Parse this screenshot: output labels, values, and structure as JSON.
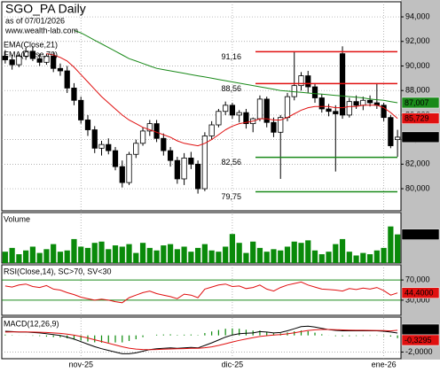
{
  "chart_data": [
    {
      "type": "candlestick",
      "title": "SGO_PA Daily",
      "subtitle": "as of 07/01/2026",
      "source": "www.wealth-lab.com",
      "categories": [
        null,
        null,
        null,
        null,
        null,
        null,
        null,
        null,
        null,
        null,
        null,
        "nov-25",
        null,
        null,
        null,
        null,
        null,
        null,
        null,
        null,
        null,
        null,
        null,
        null,
        null,
        null,
        null,
        null,
        null,
        null,
        null,
        null,
        null,
        "dic-25",
        null,
        null,
        null,
        null,
        null,
        null,
        null,
        null,
        null,
        null,
        null,
        null,
        null,
        null,
        null,
        null,
        null,
        null,
        null,
        null,
        null,
        "ene-26",
        null,
        null
      ],
      "open": [
        90800,
        90500,
        90100,
        90800,
        91200,
        90600,
        90300,
        90800,
        89800,
        89600,
        88200,
        87200,
        85600,
        84800,
        83300,
        83600,
        83100,
        81800,
        80500,
        82800,
        83700,
        84700,
        85300,
        84100,
        83100,
        82300,
        80800,
        82500,
        82000,
        80000,
        84300,
        85200,
        86300,
        86800,
        86000,
        86200,
        85300,
        85700,
        87300,
        85400,
        84600,
        85800,
        87500,
        88400,
        89200,
        88300,
        87400,
        86500,
        86300,
        91000,
        86000,
        87100,
        86800,
        87200,
        87000,
        86800,
        85800,
        84000
      ],
      "high": [
        91300,
        90900,
        91000,
        91500,
        91600,
        91000,
        91000,
        91100,
        90200,
        90000,
        88600,
        87500,
        86000,
        85100,
        83900,
        84100,
        83400,
        82300,
        83000,
        84000,
        85000,
        85600,
        85600,
        84500,
        83400,
        82600,
        82900,
        83000,
        82300,
        84600,
        85500,
        86500,
        87100,
        87000,
        86400,
        86500,
        85800,
        87600,
        87500,
        85800,
        86000,
        87800,
        91200,
        89500,
        89600,
        88600,
        87700,
        86900,
        86800,
        91600,
        87400,
        87600,
        87500,
        87600,
        88600,
        87000,
        86000,
        84800
      ],
      "low": [
        90200,
        89700,
        89900,
        90500,
        90400,
        90000,
        90100,
        89500,
        89200,
        87800,
        86800,
        85300,
        84300,
        82900,
        82700,
        82800,
        81500,
        80100,
        80300,
        82500,
        83500,
        84300,
        83800,
        82700,
        81800,
        80400,
        80300,
        81600,
        79600,
        79800,
        84000,
        85000,
        86000,
        85700,
        85400,
        84900,
        84600,
        85500,
        85000,
        84200,
        80800,
        85500,
        87200,
        88000,
        87800,
        87000,
        86200,
        85900,
        81400,
        85700,
        85800,
        86500,
        86400,
        86700,
        86500,
        85500,
        83300,
        82600
      ],
      "close": [
        90500,
        90100,
        90800,
        91200,
        90600,
        90300,
        90800,
        89800,
        89600,
        88200,
        87200,
        85600,
        84800,
        83300,
        83600,
        83100,
        81800,
        80500,
        82800,
        83700,
        84700,
        85300,
        84100,
        83100,
        82300,
        80800,
        82500,
        82000,
        80000,
        84300,
        85200,
        86300,
        86800,
        86000,
        86200,
        85300,
        85700,
        87300,
        85400,
        84600,
        85800,
        87500,
        88400,
        89200,
        88300,
        87400,
        86500,
        86300,
        86100,
        86000,
        87100,
        86800,
        87200,
        87000,
        86800,
        85800,
        83500,
        84200
      ],
      "close_label": "84,200",
      "ylim": [
        78200,
        95230
      ],
      "yticks": [
        {
          "value": 80000,
          "label": "80,000"
        },
        {
          "value": 82000,
          "label": "82,000"
        },
        {
          "value": 84000,
          "label": "84,000"
        },
        {
          "value": 86000,
          "label": "86,000"
        },
        {
          "value": 88000,
          "label": "88,000"
        },
        {
          "value": 90000,
          "label": "90,000"
        },
        {
          "value": 92000,
          "label": "92,000"
        },
        {
          "value": 94000,
          "label": "94,000"
        }
      ],
      "grid": true,
      "series": [
        {
          "name": "EMA(Close,21)",
          "color": "#e01010",
          "last_label": "85,729",
          "values": [
            null,
            null,
            null,
            null,
            null,
            null,
            91000,
            90900,
            90700,
            90400,
            89900,
            89300,
            88700,
            88100,
            87500,
            87000,
            86500,
            86000,
            85600,
            85300,
            85000,
            84800,
            84600,
            84400,
            84200,
            83900,
            83700,
            83600,
            83500,
            83700,
            84000,
            84400,
            84800,
            85100,
            85300,
            85400,
            85500,
            85700,
            85700,
            85600,
            85600,
            85800,
            86100,
            86400,
            86600,
            86700,
            86700,
            86700,
            86600,
            86600,
            86700,
            86700,
            86800,
            86800,
            86800,
            86600,
            86200,
            85729
          ]
        },
        {
          "name": "EMA(Close,70)",
          "color": "#1a8a1a",
          "last_label": "87,007",
          "values": [
            null,
            null,
            null,
            null,
            null,
            null,
            null,
            null,
            null,
            null,
            92900,
            92700,
            92400,
            92100,
            91800,
            91500,
            91200,
            90900,
            90600,
            90400,
            90200,
            90000,
            89800,
            89700,
            89600,
            89500,
            89400,
            89300,
            89200,
            89100,
            89000,
            88900,
            88800,
            88700,
            88600,
            88500,
            88400,
            88300,
            88200,
            88100,
            88000,
            87950,
            87900,
            87850,
            87800,
            87750,
            87700,
            87650,
            87600,
            87550,
            87500,
            87450,
            87400,
            87300,
            87250,
            87200,
            87100,
            87007
          ]
        }
      ],
      "levels": [
        {
          "value": 91160,
          "label": "91,16",
          "color": "#e01010"
        },
        {
          "value": 88560,
          "label": "88,56",
          "color": "#e01010"
        },
        {
          "value": 82560,
          "label": "82,56",
          "color": "#1a8a1a"
        },
        {
          "value": 79750,
          "label": "79,75",
          "color": "#1a8a1a"
        }
      ]
    },
    {
      "type": "bar",
      "title": "Volume",
      "color": "#0a8a0a",
      "ylim": [
        0,
        4000000
      ],
      "last_label": "2,27 M",
      "values": [
        900000,
        1200000,
        700000,
        1000000,
        1300000,
        800000,
        1100000,
        1500000,
        900000,
        1000000,
        1900000,
        1300000,
        1200000,
        1600000,
        1700000,
        1100000,
        1400000,
        1300000,
        1500000,
        800000,
        1600000,
        1200000,
        1000000,
        1400000,
        1500000,
        1100000,
        1300000,
        900000,
        1200000,
        1500000,
        1000000,
        900000,
        1300000,
        2300000,
        1600000,
        800000,
        1700000,
        1200000,
        900000,
        1100000,
        1000000,
        1300000,
        1700000,
        1600000,
        1800000,
        1000000,
        700000,
        900000,
        1500000,
        1900000,
        900000,
        600000,
        800000,
        700000,
        1000000,
        1200000,
        2900000,
        2270000
      ]
    },
    {
      "type": "line",
      "title": "RSI(Close,14), SC>70, SV<30",
      "color": "#e01010",
      "band_color": "#1a8a1a",
      "last_label": "44,4000",
      "ylim": [
        0,
        100
      ],
      "yticks": [
        {
          "value": 30,
          "label": "30,000"
        },
        {
          "value": 70,
          "label": "70,000"
        }
      ],
      "values": [
        58,
        56,
        60,
        62,
        57,
        55,
        59,
        52,
        50,
        45,
        41,
        36,
        33,
        30,
        32,
        30,
        27,
        25,
        35,
        40,
        45,
        48,
        43,
        40,
        37,
        33,
        42,
        40,
        35,
        52,
        56,
        60,
        62,
        57,
        58,
        53,
        55,
        60,
        52,
        48,
        55,
        60,
        63,
        66,
        60,
        56,
        52,
        51,
        50,
        48,
        53,
        51,
        54,
        52,
        55,
        49,
        40,
        44.4
      ]
    },
    {
      "type": "macd",
      "title": "MACD(12,26,9)",
      "ylim": [
        -2.8,
        2.2
      ],
      "yticks": [
        {
          "value": -2,
          "label": "-2,0000"
        }
      ],
      "macd": {
        "color": "#000000",
        "last_label": "0,2848",
        "values": [
          0.5,
          0.45,
          0.4,
          0.4,
          0.35,
          0.3,
          0.2,
          0.1,
          0,
          -0.2,
          -0.45,
          -0.75,
          -1.05,
          -1.35,
          -1.6,
          -1.8,
          -2.0,
          -2.2,
          -2.2,
          -2.1,
          -1.9,
          -1.7,
          -1.6,
          -1.55,
          -1.5,
          -1.55,
          -1.5,
          -1.45,
          -1.5,
          -1.2,
          -0.9,
          -0.55,
          -0.2,
          0.05,
          0.2,
          0.25,
          0.3,
          0.45,
          0.4,
          0.3,
          0.35,
          0.55,
          0.8,
          1.05,
          1.1,
          1.0,
          0.85,
          0.7,
          0.6,
          0.55,
          0.55,
          0.55,
          0.55,
          0.55,
          0.55,
          0.5,
          0.4,
          0.2848
        ]
      },
      "signal": {
        "color": "#e01010",
        "values": [
          0.4,
          0.41,
          0.41,
          0.41,
          0.4,
          0.38,
          0.35,
          0.3,
          0.24,
          0.15,
          0.03,
          -0.13,
          -0.31,
          -0.52,
          -0.73,
          -0.94,
          -1.15,
          -1.36,
          -1.53,
          -1.64,
          -1.69,
          -1.7,
          -1.69,
          -1.66,
          -1.63,
          -1.61,
          -1.59,
          -1.56,
          -1.55,
          -1.48,
          -1.37,
          -1.2,
          -1.0,
          -0.79,
          -0.6,
          -0.43,
          -0.28,
          -0.13,
          -0.03,
          0.04,
          0.1,
          0.19,
          0.31,
          0.46,
          0.59,
          0.67,
          0.71,
          0.71,
          0.69,
          0.66,
          0.64,
          0.62,
          0.61,
          0.6,
          0.59,
          0.57,
          0.54,
          0.6143
        ]
      },
      "histogram": {
        "color": "#0a8a0a",
        "label_color": "#e01010",
        "last_label": "-0,3295",
        "values": [
          0.1,
          0.04,
          -0.01,
          -0.01,
          -0.05,
          -0.08,
          -0.15,
          -0.2,
          -0.24,
          -0.35,
          -0.48,
          -0.62,
          -0.74,
          -0.83,
          -0.87,
          -0.86,
          -0.85,
          -0.84,
          -0.67,
          -0.46,
          -0.21,
          0,
          0.09,
          0.11,
          0.13,
          0.06,
          0.09,
          0.11,
          0.05,
          0.28,
          0.47,
          0.65,
          0.8,
          0.84,
          0.8,
          0.68,
          0.58,
          0.58,
          0.43,
          0.26,
          0.25,
          0.36,
          0.49,
          0.59,
          0.51,
          0.33,
          0.14,
          -0.01,
          -0.09,
          -0.11,
          -0.09,
          -0.07,
          -0.06,
          -0.05,
          -0.04,
          -0.07,
          -0.14,
          -0.3295
        ]
      }
    }
  ]
}
